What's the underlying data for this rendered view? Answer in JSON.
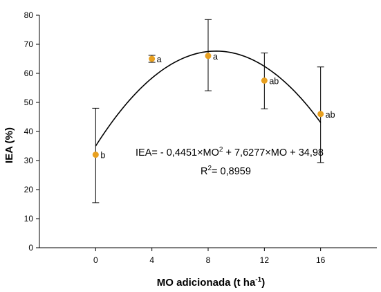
{
  "chart_data": {
    "type": "scatter",
    "xlabel": "MO adicionada (t ha",
    "xlabel_sup": "-1",
    "xlabel_end": ")",
    "ylabel": "IEA (%)",
    "xticks": [
      0,
      4,
      8,
      12,
      16
    ],
    "yticks": [
      0,
      10,
      20,
      30,
      40,
      50,
      60,
      70,
      80
    ],
    "xlim": [
      -4,
      20
    ],
    "ylim": [
      0,
      80
    ],
    "point_color": "#E8A020",
    "points": [
      {
        "x": 0,
        "y": 32,
        "err_low": 15.5,
        "err_high": 48,
        "label": "b"
      },
      {
        "x": 4,
        "y": 65,
        "err_low": 63.8,
        "err_high": 66.2,
        "label": "a"
      },
      {
        "x": 8,
        "y": 66,
        "err_low": 54,
        "err_high": 78.5,
        "label": "a"
      },
      {
        "x": 12,
        "y": 57.5,
        "err_low": 47.8,
        "err_high": 67,
        "label": "ab"
      },
      {
        "x": 16,
        "y": 46,
        "err_low": 29.3,
        "err_high": 62.2,
        "label": "ab"
      }
    ],
    "fit": {
      "a": -0.4451,
      "b": 7.6277,
      "c": 34.98,
      "x_range": [
        0,
        16
      ]
    },
    "equation": {
      "part1": "IEA= - 0,4451×MO",
      "sup1": "2",
      "part2": " + 7,6277×MO + 34,98",
      "r2_prefix": "R",
      "r2_sup": "2",
      "r2_value": "= 0,8959"
    }
  }
}
